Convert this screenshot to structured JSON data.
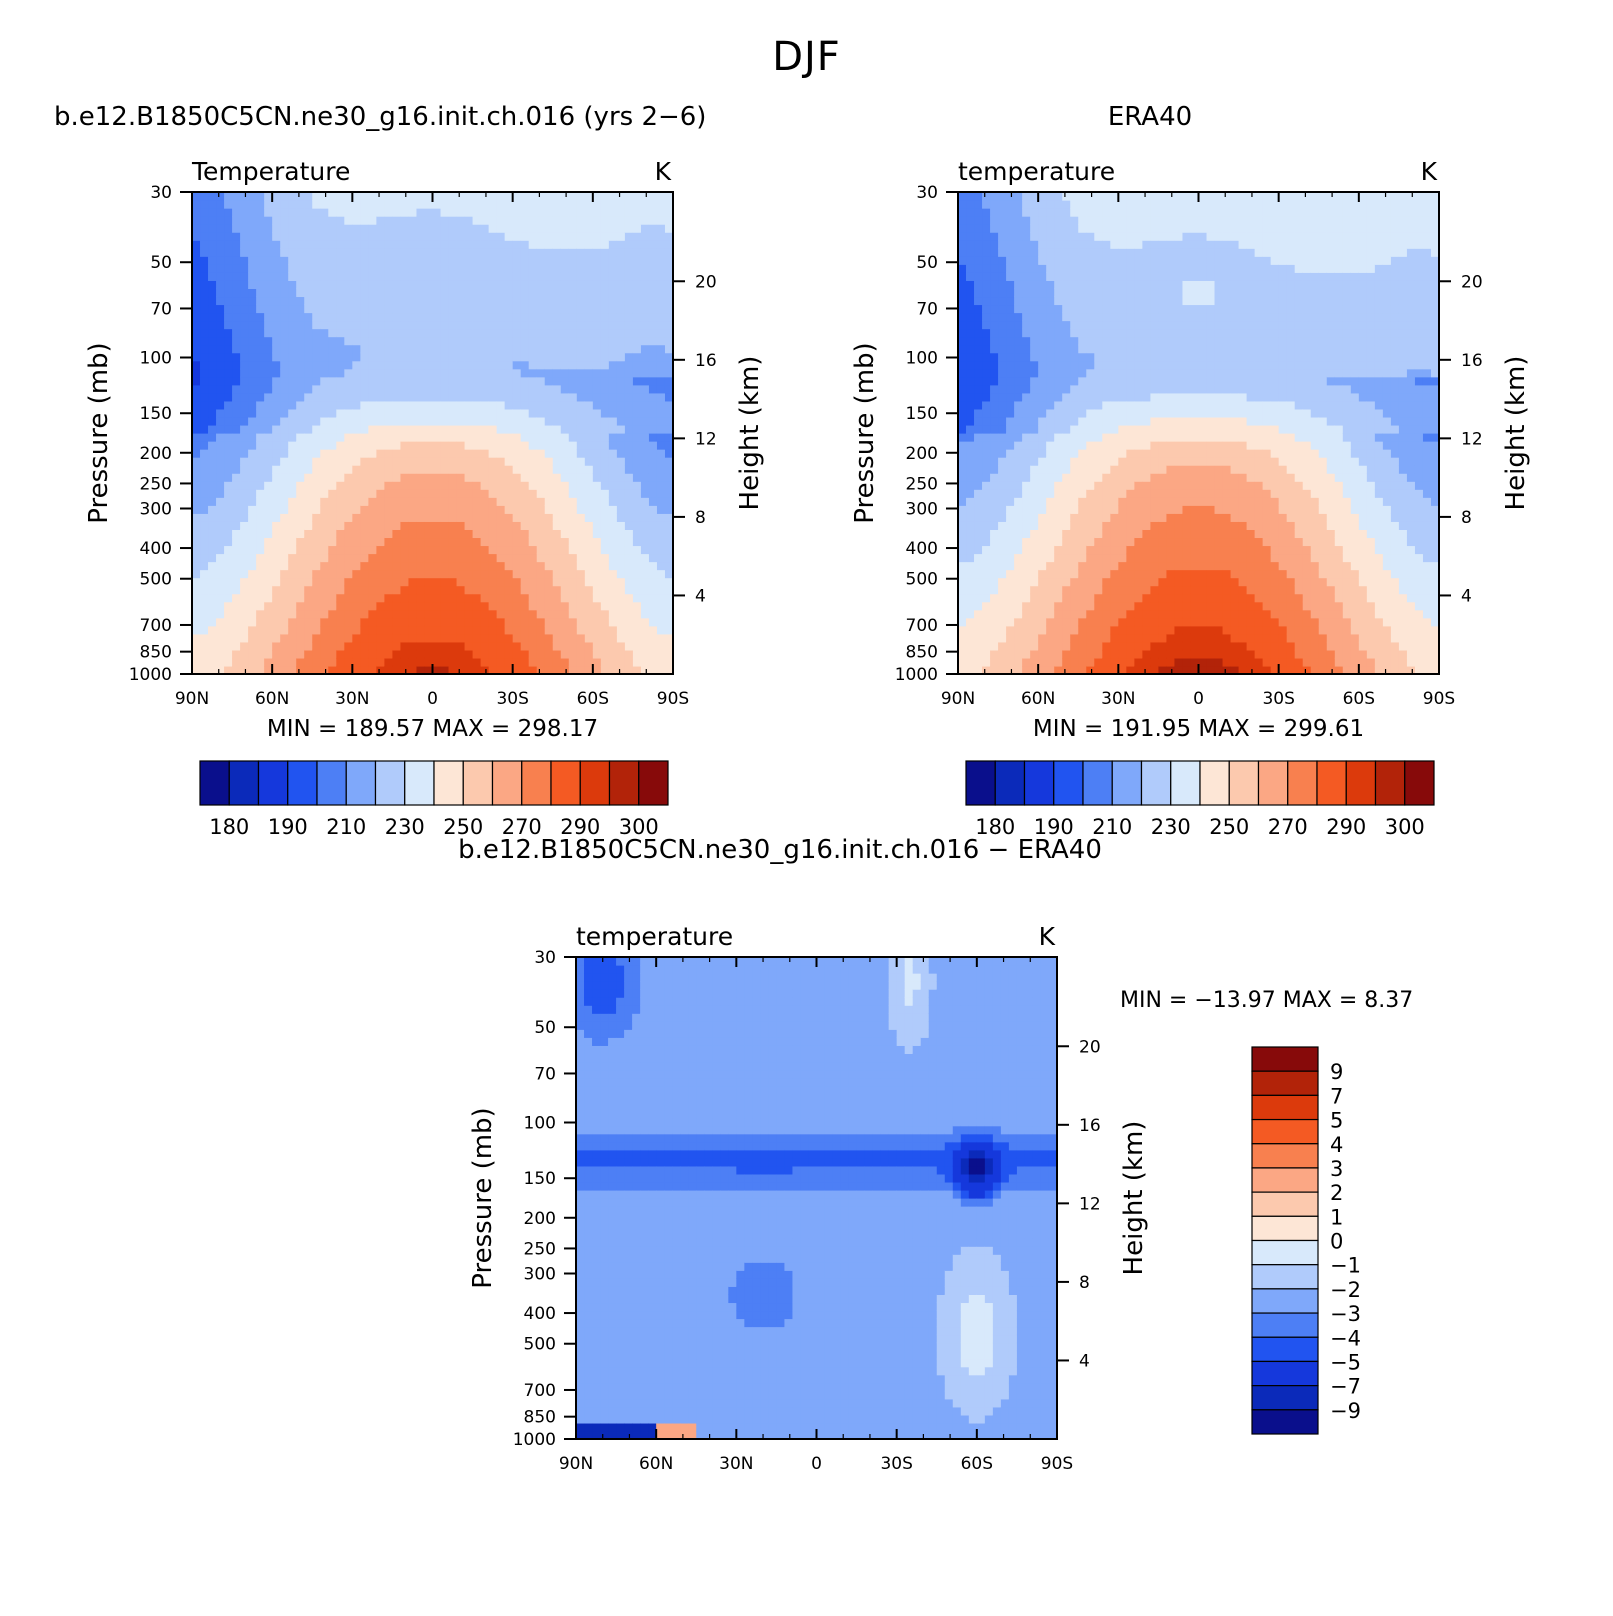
{
  "figure": {
    "title": "DJF"
  },
  "colors": {
    "abs_scale": [
      "#0a0f8c",
      "#0b2aba",
      "#1538dc",
      "#2154f0",
      "#4d7ff5",
      "#7fa8fa",
      "#b0cbfb",
      "#d8e9fb",
      "#fde6d6",
      "#fcc9ae",
      "#fba784",
      "#f8804f",
      "#f45a23",
      "#dc3a0c",
      "#b22309",
      "#870a0a"
    ],
    "diff_scale": [
      "#0a0f8c",
      "#0b2aba",
      "#1538dc",
      "#2154f0",
      "#4d7ff5",
      "#7fa8fa",
      "#b0cbfb",
      "#d8e9fb",
      "#fde6d6",
      "#fcc9ae",
      "#fba784",
      "#f8804f",
      "#f45a23",
      "#dc3a0c",
      "#b22309",
      "#870a0a"
    ]
  },
  "panels": {
    "model": {
      "title": "b.e12.B1850C5CN.ne30_g16.init.ch.016 (yrs 2−6)",
      "variable": "Temperature",
      "units": "K",
      "y_label": "Pressure (mb)",
      "y2_label": "Height (km)",
      "stats": "MIN =  189.57   MAX =  298.17"
    },
    "obs": {
      "title": "ERA40",
      "variable": "temperature",
      "units": "K",
      "y_label": "Pressure (mb)",
      "y2_label": "Height (km)",
      "stats": "MIN =  191.95   MAX =  299.61"
    },
    "diff": {
      "title": "b.e12.B1850C5CN.ne30_g16.init.ch.016 − ERA40",
      "variable": "temperature",
      "units": "K",
      "y_label": "Pressure (mb)",
      "y2_label": "Height (km)",
      "stats": "MIN = −13.97   MAX =    8.37"
    }
  },
  "chart_data": [
    {
      "type": "heatmap",
      "name_ref": "model",
      "x_ticks": [
        "90N",
        "60N",
        "30N",
        "0",
        "30S",
        "60S",
        "90S"
      ],
      "x_range": [
        90,
        -90
      ],
      "y_ticks": [
        30,
        50,
        70,
        100,
        150,
        200,
        250,
        300,
        400,
        500,
        700,
        850,
        1000
      ],
      "y_scale": "log",
      "y_range": [
        1000,
        30
      ],
      "y2_ticks": [
        20,
        16,
        12,
        8,
        4
      ],
      "colorbar_ticks": [
        180,
        190,
        210,
        230,
        250,
        270,
        290,
        300
      ],
      "colorbar_orientation": "horizontal",
      "min": 189.57,
      "max": 298.17
    },
    {
      "type": "heatmap",
      "name_ref": "obs",
      "x_ticks": [
        "90N",
        "60N",
        "30N",
        "0",
        "30S",
        "60S",
        "90S"
      ],
      "x_range": [
        90,
        -90
      ],
      "y_ticks": [
        30,
        50,
        70,
        100,
        150,
        200,
        250,
        300,
        400,
        500,
        700,
        850,
        1000
      ],
      "y_scale": "log",
      "y_range": [
        1000,
        30
      ],
      "y2_ticks": [
        20,
        16,
        12,
        8,
        4
      ],
      "colorbar_ticks": [
        180,
        190,
        210,
        230,
        250,
        270,
        290,
        300
      ],
      "colorbar_orientation": "horizontal",
      "min": 191.95,
      "max": 299.61
    },
    {
      "type": "heatmap",
      "name_ref": "diff",
      "x_ticks": [
        "90N",
        "60N",
        "30N",
        "0",
        "30S",
        "60S",
        "90S"
      ],
      "x_range": [
        90,
        -90
      ],
      "y_ticks": [
        30,
        50,
        70,
        100,
        150,
        200,
        250,
        300,
        400,
        500,
        700,
        850,
        1000
      ],
      "y_scale": "log",
      "y_range": [
        1000,
        30
      ],
      "y2_ticks": [
        20,
        16,
        12,
        8,
        4
      ],
      "colorbar_ticks": [
        "9",
        "7",
        "5",
        "4",
        "3",
        "2",
        "1",
        "0",
        "−1",
        "−2",
        "−3",
        "−4",
        "−5",
        "−7",
        "−9"
      ],
      "colorbar_orientation": "vertical",
      "min": -13.97,
      "max": 8.37
    }
  ]
}
